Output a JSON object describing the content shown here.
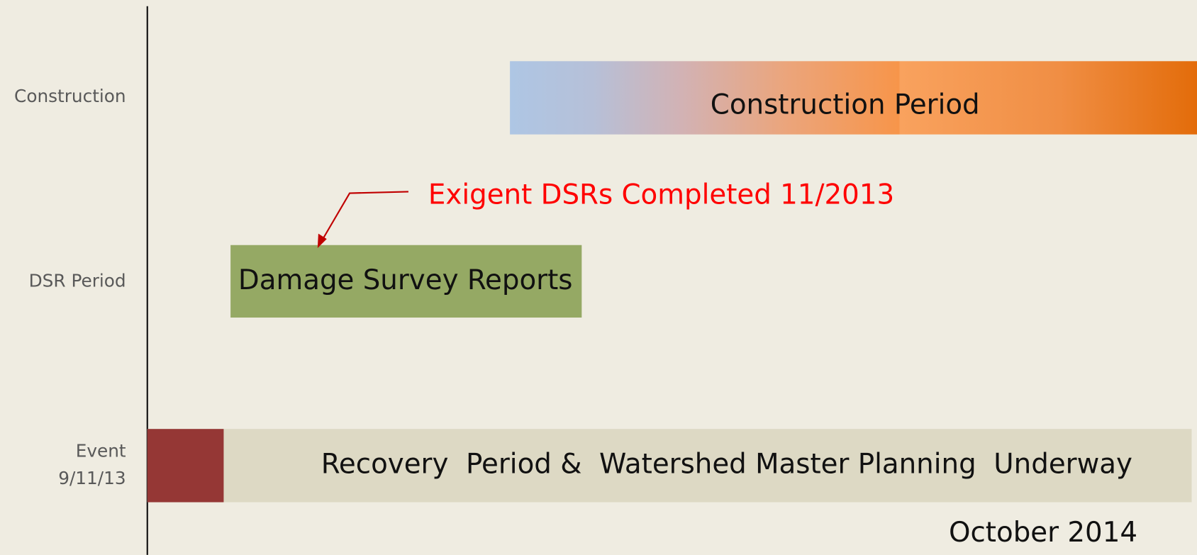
{
  "rows": [
    {
      "label": "Construction"
    },
    {
      "label": "DSR Period"
    },
    {
      "label": [
        "Event",
        "9/11/13"
      ]
    }
  ],
  "bars": [
    {
      "label": "Construction Period"
    },
    {
      "label": "Damage Survey Reports"
    },
    {
      "label": "Recovery  Period &  Watershed Master Planning  Underway"
    }
  ],
  "annotation": "Exigent DSRs Completed 11/2013",
  "date_label": "October 2014"
}
